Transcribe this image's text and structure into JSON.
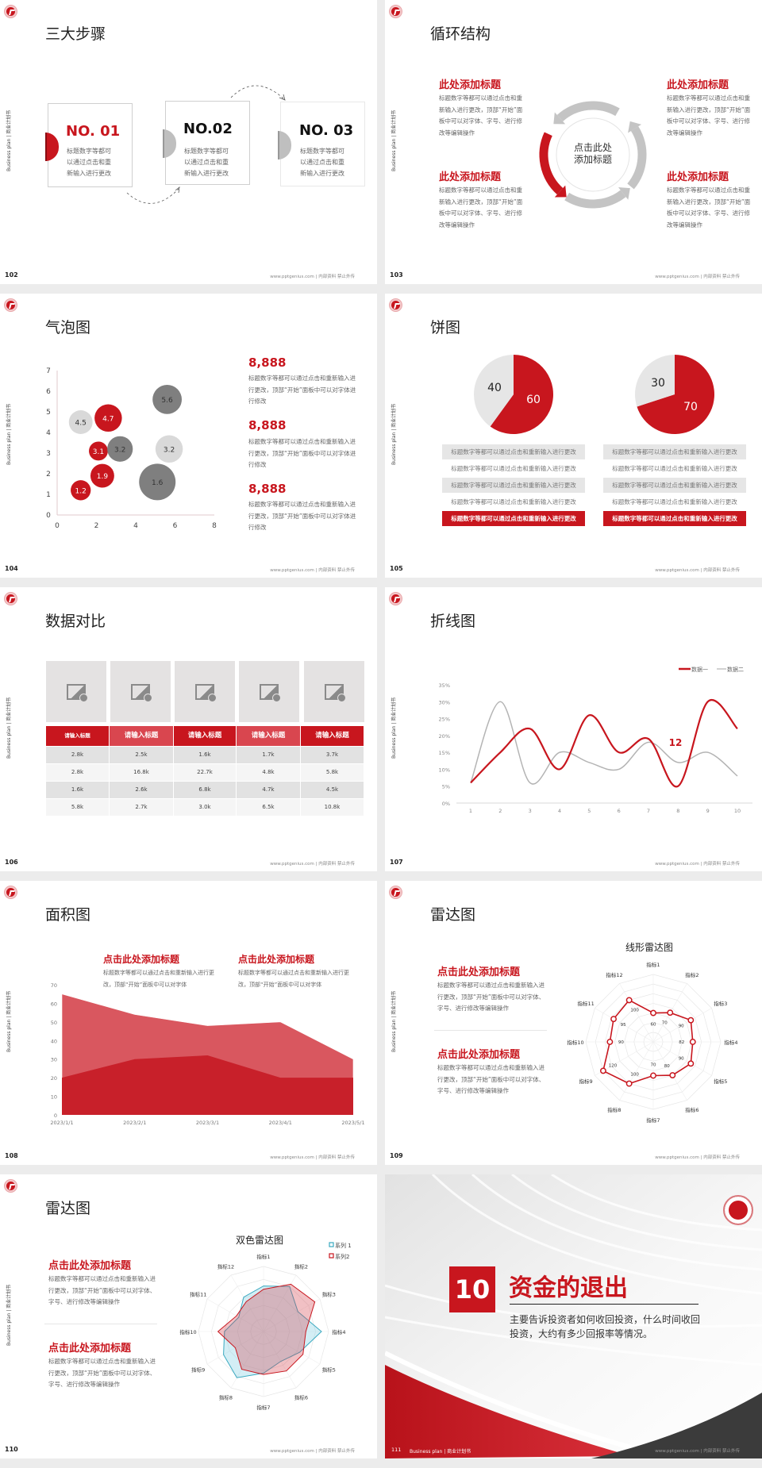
{
  "common": {
    "side_label": "Business plan | 商业计划书",
    "footer": "www.pptgenius.com | 内部资料 禁止外传",
    "accent": "#c8161e",
    "gray": "#bfbfbf"
  },
  "slides": [
    {
      "page": "102",
      "title": "三大步骤",
      "steps": [
        {
          "no": "NO. 01",
          "desc": "标题数字等都可以通过点击和重新输入进行更改",
          "active": true
        },
        {
          "no": "NO.02",
          "desc": "标题数字等都可以通过点击和重新输入进行更改",
          "active": false
        },
        {
          "no": "NO. 03",
          "desc": "标题数字等都可以通过点击和重新输入进行更改",
          "active": false
        }
      ]
    },
    {
      "page": "103",
      "title": "循环结构",
      "center": "点击此处添加标题",
      "blocks": [
        {
          "title": "此处添加标题",
          "body": "标题数字等都可以通过点击和重新输入进行更改，顶部“开始”面板中可以对字体、字号、进行修改等编辑操作"
        },
        {
          "title": "此处添加标题",
          "body": "标题数字等都可以通过点击和重新输入进行更改，顶部“开始”面板中可以对字体、字号、进行修改等编辑操作"
        },
        {
          "title": "此处添加标题",
          "body": "标题数字等都可以通过点击和重新输入进行更改，顶部“开始”面板中可以对字体、字号、进行修改等编辑操作"
        },
        {
          "title": "此处添加标题",
          "body": "标题数字等都可以通过点击和重新输入进行更改，顶部“开始”面板中可以对字体、字号、进行修改等编辑操作"
        }
      ]
    },
    {
      "page": "104",
      "title": "气泡图",
      "stats": [
        {
          "value": "8,888",
          "body": "标题数字等都可以通过点击和重新输入进行更改，顶部“开始”面板中可以对字体进行修改"
        },
        {
          "value": "8,888",
          "body": "标题数字等都可以通过点击和重新输入进行更改，顶部“开始”面板中可以对字体进行修改"
        },
        {
          "value": "8,888",
          "body": "标题数字等都可以通过点击和重新输入进行更改，顶部“开始”面板中可以对字体进行修改"
        }
      ]
    },
    {
      "page": "105",
      "title": "饼图",
      "rows_left": [
        "标题数字等都可以通过点击和重新输入进行更改",
        "标题数字等都可以通过点击和重新输入进行更改",
        "标题数字等都可以通过点击和重新输入进行更改",
        "标题数字等都可以通过点击和重新输入进行更改",
        "标题数字等都可以通过点击和重新输入进行更改"
      ],
      "rows_right": [
        "标题数字等都可以通过点击和重新输入进行更改",
        "标题数字等都可以通过点击和重新输入进行更改",
        "标题数字等都可以通过点击和重新输入进行更改",
        "标题数字等都可以通过点击和重新输入进行更改",
        "标题数字等都可以通过点击和重新输入进行更改"
      ]
    },
    {
      "page": "106",
      "title": "数据对比",
      "table": {
        "headers": [
          "请输入标题",
          "请输入标题",
          "请输入标题",
          "请输入标题",
          "请输入标题"
        ],
        "rows": [
          [
            "2.8k",
            "2.5k",
            "1.6k",
            "1.7k",
            "3.7k"
          ],
          [
            "2.8k",
            "16.8k",
            "22.7k",
            "4.8k",
            "5.8k"
          ],
          [
            "1.6k",
            "2.6k",
            "6.8k",
            "4.7k",
            "4.5k"
          ],
          [
            "5.8k",
            "2.7k",
            "3.0k",
            "6.5k",
            "10.8k"
          ]
        ]
      }
    },
    {
      "page": "107",
      "title": "折线图"
    },
    {
      "page": "108",
      "title": "面积图",
      "blocks": [
        {
          "title": "点击此处添加标题",
          "body": "标题数字等都可以通过点击和重新输入进行更改，顶部“开始”面板中可以对字体"
        },
        {
          "title": "点击此处添加标题",
          "body": "标题数字等都可以通过点击和重新输入进行更改，顶部“开始”面板中可以对字体"
        }
      ]
    },
    {
      "page": "109",
      "title": "雷达图",
      "blocks": [
        {
          "title": "点击此处添加标题",
          "body": "标题数字等都可以通过点击和重新输入进行更改，顶部“开始”面板中可以对字体、字号、进行修改等编辑操作"
        },
        {
          "title": "点击此处添加标题",
          "body": "标题数字等都可以通过点击和重新输入进行更改，顶部“开始”面板中可以对字体、字号、进行修改等编辑操作"
        }
      ]
    },
    {
      "page": "110",
      "title": "雷达图",
      "blocks": [
        {
          "title": "点击此处添加标题",
          "body": "标题数字等都可以通过点击和重新输入进行更改，顶部“开始”面板中可以对字体、字号、进行修改等编辑操作"
        },
        {
          "title": "点击此处添加标题",
          "body": "标题数字等都可以通过点击和重新输入进行更改，顶部“开始”面板中可以对字体、字号、进行修改等编辑操作"
        }
      ]
    },
    {
      "page": "111",
      "number": "10",
      "title": "资金的退出",
      "body": "主要告诉投资者如何收回投资，什么时间收回投资，大约有多少回报率等情况。",
      "footer_label": "Business plan | 商业计划书"
    }
  ],
  "chart_data": [
    {
      "type": "scatter",
      "subtype": "bubble",
      "xlim": [
        0,
        8
      ],
      "ylim": [
        0,
        7
      ],
      "xticks": [
        0,
        2,
        4,
        6,
        8
      ],
      "yticks": [
        0,
        1,
        2,
        3,
        4,
        5,
        6,
        7
      ],
      "points": [
        {
          "x": 1.2,
          "y": 4.5,
          "label": "4.5",
          "size": 0.65,
          "color": "#d9d9d9"
        },
        {
          "x": 2.6,
          "y": 4.7,
          "label": "4.7",
          "size": 0.75,
          "color": "#c8161e"
        },
        {
          "x": 5.6,
          "y": 5.6,
          "label": "5.6",
          "size": 0.8,
          "color": "#7f7f7f"
        },
        {
          "x": 2.1,
          "y": 3.1,
          "label": "3.1",
          "size": 0.52,
          "color": "#c8161e"
        },
        {
          "x": 3.2,
          "y": 3.2,
          "label": "3.2",
          "size": 0.7,
          "color": "#7f7f7f"
        },
        {
          "x": 5.7,
          "y": 3.2,
          "label": "3.2",
          "size": 0.75,
          "color": "#d9d9d9"
        },
        {
          "x": 2.3,
          "y": 1.9,
          "label": "1.9",
          "size": 0.65,
          "color": "#c8161e"
        },
        {
          "x": 1.2,
          "y": 1.2,
          "label": "1.2",
          "size": 0.55,
          "color": "#c8161e"
        },
        {
          "x": 5.1,
          "y": 1.6,
          "label": "1.6",
          "size": 1.0,
          "color": "#7f7f7f"
        }
      ]
    },
    {
      "type": "pie",
      "slices": [
        {
          "label": "60",
          "value": 60,
          "color": "#c8161e"
        },
        {
          "label": "40",
          "value": 40,
          "color": "#e6e6e6"
        }
      ]
    },
    {
      "type": "pie",
      "slices": [
        {
          "label": "70",
          "value": 70,
          "color": "#c8161e"
        },
        {
          "label": "30",
          "value": 30,
          "color": "#e6e6e6"
        }
      ]
    },
    {
      "type": "line",
      "x": [
        1,
        2,
        3,
        4,
        5,
        6,
        7,
        8,
        9,
        10
      ],
      "ylim": [
        0,
        35
      ],
      "yticks": [
        "0%",
        "5%",
        "10%",
        "15%",
        "20%",
        "25%",
        "30%",
        "35%"
      ],
      "legend": "top-right",
      "annotation": "12",
      "series": [
        {
          "name": "数据一",
          "values": [
            6,
            15,
            22,
            10,
            26,
            15,
            19,
            5,
            30,
            22
          ],
          "color": "#c8161e"
        },
        {
          "name": "数据二",
          "values": [
            6,
            30,
            6,
            15,
            12,
            10,
            18,
            12,
            15,
            8
          ],
          "color": "#b4b4b4"
        }
      ]
    },
    {
      "type": "area",
      "categories": [
        "2023/1/1",
        "2023/2/1",
        "2023/3/1",
        "2023/4/1",
        "2023/5/1"
      ],
      "ylim": [
        0,
        70
      ],
      "yticks": [
        0,
        10,
        20,
        30,
        40,
        50,
        60,
        70
      ],
      "series": [
        {
          "values": [
            65,
            54,
            48,
            50,
            30
          ],
          "color": "#d9575f"
        },
        {
          "values": [
            20,
            30,
            32,
            20,
            20
          ],
          "color": "#c8202a"
        }
      ]
    },
    {
      "type": "radar",
      "title": "线形雷达图",
      "axes": [
        "指标1",
        "指标2",
        "指标3",
        "指标4",
        "指标5",
        "指标6",
        "指标7",
        "指标8",
        "指标9",
        "指标10",
        "指标11",
        "指标12"
      ],
      "range": [
        0,
        140
      ],
      "series": [
        {
          "values": [
            60,
            70,
            90,
            82,
            90,
            80,
            70,
            100,
            120,
            90,
            95,
            100
          ],
          "color": "#c8161e"
        }
      ]
    },
    {
      "type": "radar",
      "title": "双色雷达图",
      "axes": [
        "指标1",
        "指标2",
        "指标3",
        "指标4",
        "指标5",
        "指标6",
        "指标7",
        "指标8",
        "指标9",
        "指标10",
        "指标11",
        "指标12"
      ],
      "range": [
        0,
        100
      ],
      "legend": "top-right",
      "series": [
        {
          "name": "系列 1",
          "values": [
            70,
            80,
            61,
            89,
            64,
            53,
            64,
            82,
            71,
            60,
            44,
            61
          ],
          "color": "#3aa9c0"
        },
        {
          "name": "系列2",
          "values": [
            65,
            84,
            91,
            65,
            70,
            70,
            66,
            67,
            50,
            70,
            48,
            53
          ],
          "color": "#c8161e"
        }
      ]
    }
  ]
}
